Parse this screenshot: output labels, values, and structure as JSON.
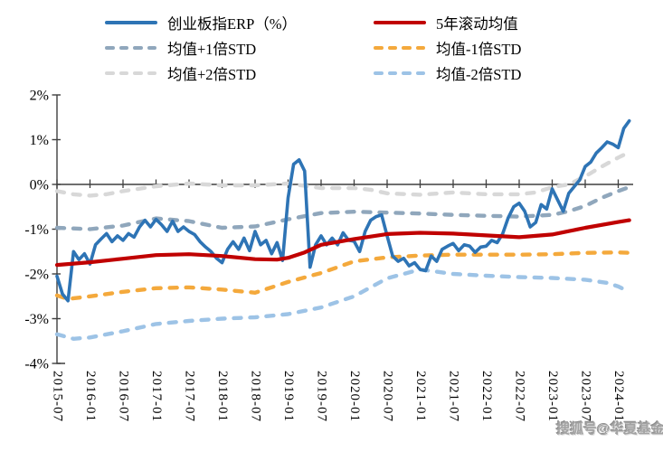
{
  "watermark": "搜狐号@华夏基金",
  "axis_color": "#3f3f3f",
  "text_color": "#000000",
  "chart_data": {
    "type": "line",
    "title": "",
    "x_unit": "month",
    "x_start_month": "2015-07",
    "months_count": 105,
    "x_tick_every": 6,
    "x_tick_labels": [
      "2015-07",
      "2016-01",
      "2016-07",
      "2017-01",
      "2017-07",
      "2018-01",
      "2018-07",
      "2019-01",
      "2019-07",
      "2020-01",
      "2020-07",
      "2021-01",
      "2021-07",
      "2022-01",
      "2022-07",
      "2023-01",
      "2023-07",
      "2024-01"
    ],
    "y_ticks": [
      {
        "label": "2%",
        "value": 2
      },
      {
        "label": "1%",
        "value": 1
      },
      {
        "label": "0%",
        "value": 0
      },
      {
        "label": "-1%",
        "value": -1
      },
      {
        "label": "-2%",
        "value": -2
      },
      {
        "label": "-3%",
        "value": -3
      },
      {
        "label": "-4%",
        "value": -4
      }
    ],
    "ylim": [
      -4,
      2
    ],
    "grid": false,
    "legend_position": "top",
    "series": [
      {
        "name": "创业板指ERP（%）",
        "color": "#2E74B5",
        "line": "solid",
        "values_monthly": [
          -2.05,
          -2.45,
          -2.6,
          -1.5,
          -1.68,
          -1.55,
          -1.78,
          -1.35,
          -1.22,
          -1.1,
          -1.28,
          -1.15,
          -1.25,
          -1.1,
          -1.18,
          -0.95,
          -0.8,
          -0.95,
          -0.78,
          -0.9,
          -1.05,
          -0.82,
          -1.05,
          -0.95,
          -1.05,
          -1.12,
          -1.28,
          -1.4,
          -1.5,
          -1.65,
          -1.75,
          -1.45,
          -1.28,
          -1.45,
          -1.2,
          -1.48,
          -1.05,
          -1.35,
          -1.25,
          -1.55,
          -1.3,
          -1.7,
          -0.3,
          0.45,
          0.55,
          0.3,
          -1.85,
          -1.35,
          -1.15,
          -1.35,
          -1.2,
          -1.35,
          -1.08,
          -1.25,
          -1.27,
          -1.5,
          -1.05,
          -0.8,
          -0.72,
          -0.68,
          -1.15,
          -1.6,
          -1.72,
          -1.65,
          -1.82,
          -1.75,
          -1.9,
          -1.93,
          -1.6,
          -1.72,
          -1.45,
          -1.38,
          -1.32,
          -1.48,
          -1.35,
          -1.38,
          -1.52,
          -1.4,
          -1.38,
          -1.25,
          -1.3,
          -1.1,
          -0.75,
          -0.5,
          -0.42,
          -0.6,
          -0.95,
          -0.85,
          -0.45,
          -0.55,
          -0.1,
          -0.35,
          -0.6,
          -0.2,
          -0.05,
          0.1,
          0.4,
          0.5,
          0.7,
          0.82,
          0.95,
          0.9,
          0.82,
          1.25,
          1.42
        ]
      },
      {
        "name": "5年滚动均值",
        "color": "#C00000",
        "line": "solid",
        "keypoints": {
          "month_index": [
            0,
            6,
            12,
            18,
            24,
            30,
            36,
            40,
            42,
            45,
            48,
            54,
            60,
            66,
            72,
            78,
            84,
            90,
            96,
            102,
            104
          ],
          "values": [
            -1.8,
            -1.74,
            -1.66,
            -1.58,
            -1.56,
            -1.6,
            -1.67,
            -1.68,
            -1.64,
            -1.52,
            -1.35,
            -1.22,
            -1.11,
            -1.08,
            -1.1,
            -1.14,
            -1.18,
            -1.12,
            -0.97,
            -0.84,
            -0.8
          ]
        }
      },
      {
        "name": "均值+1倍STD",
        "color": "#90A7BC",
        "line": "dashed",
        "keypoints": {
          "month_index": [
            0,
            6,
            12,
            18,
            24,
            30,
            36,
            42,
            48,
            54,
            60,
            66,
            72,
            78,
            84,
            90,
            93,
            96,
            99,
            102,
            104
          ],
          "values": [
            -0.97,
            -1.0,
            -0.92,
            -0.76,
            -0.82,
            -0.97,
            -0.94,
            -0.78,
            -0.64,
            -0.61,
            -0.63,
            -0.65,
            -0.68,
            -0.7,
            -0.72,
            -0.68,
            -0.6,
            -0.48,
            -0.3,
            -0.15,
            -0.06
          ]
        }
      },
      {
        "name": "均值-1倍STD",
        "color": "#F4A93C",
        "line": "dashed",
        "keypoints": {
          "month_index": [
            0,
            2,
            6,
            12,
            18,
            24,
            30,
            36,
            42,
            48,
            54,
            60,
            66,
            72,
            78,
            84,
            90,
            96,
            102,
            104
          ],
          "values": [
            -2.48,
            -2.56,
            -2.5,
            -2.4,
            -2.32,
            -2.3,
            -2.35,
            -2.42,
            -2.18,
            -1.98,
            -1.72,
            -1.63,
            -1.59,
            -1.57,
            -1.57,
            -1.57,
            -1.56,
            -1.53,
            -1.52,
            -1.53
          ]
        }
      },
      {
        "name": "均值+2倍STD",
        "color": "#D8D8D8",
        "line": "dashed",
        "keypoints": {
          "month_index": [
            0,
            3,
            6,
            9,
            12,
            18,
            24,
            30,
            36,
            42,
            48,
            54,
            57,
            60,
            66,
            72,
            78,
            84,
            87,
            90,
            93,
            96,
            99,
            102,
            104
          ],
          "values": [
            -0.15,
            -0.22,
            -0.25,
            -0.22,
            -0.15,
            -0.04,
            0.02,
            -0.02,
            -0.02,
            0.02,
            -0.08,
            -0.08,
            -0.12,
            -0.2,
            -0.23,
            -0.18,
            -0.22,
            -0.22,
            -0.18,
            -0.06,
            0.0,
            0.18,
            0.4,
            0.6,
            0.72
          ]
        }
      },
      {
        "name": "均值-2倍STD",
        "color": "#9DC3E6",
        "line": "dashed",
        "keypoints": {
          "month_index": [
            0,
            3,
            6,
            12,
            18,
            24,
            30,
            36,
            42,
            48,
            54,
            60,
            66,
            72,
            78,
            84,
            90,
            96,
            100,
            102,
            104
          ],
          "values": [
            -3.35,
            -3.45,
            -3.42,
            -3.28,
            -3.12,
            -3.05,
            -3.0,
            -2.97,
            -2.9,
            -2.75,
            -2.5,
            -2.1,
            -1.9,
            -2.0,
            -2.04,
            -2.07,
            -2.09,
            -2.13,
            -2.2,
            -2.28,
            -2.4
          ]
        }
      }
    ]
  }
}
